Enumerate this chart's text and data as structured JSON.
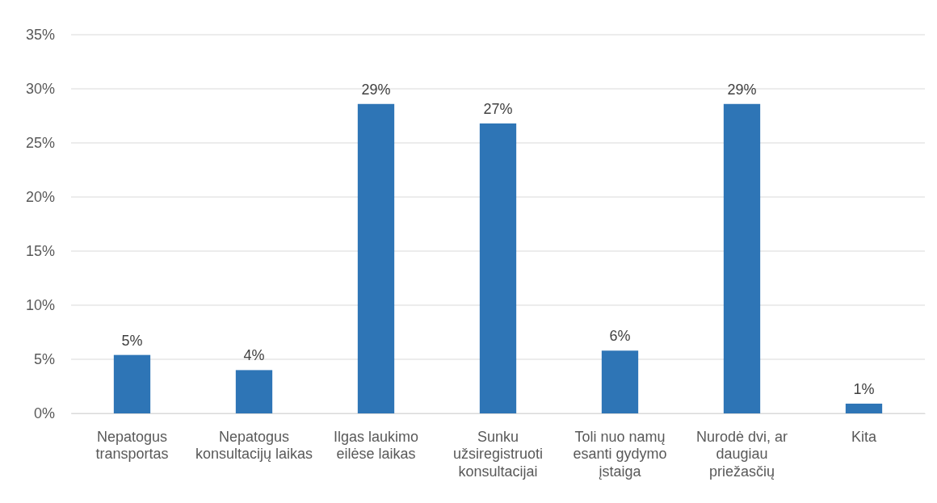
{
  "chart_data": {
    "type": "bar",
    "categories": [
      "Nepatogus transportas",
      "Nepatogus konsultacijų laikas",
      "Ilgas laukimo eilėse laikas",
      "Sunku užsiregistruoti konsultacijai",
      "Toli nuo namų esanti gydymo įstaiga",
      "Nurodė dvi, ar daugiau priežasčių",
      "Kita"
    ],
    "values": [
      5.4,
      4.0,
      28.6,
      26.8,
      5.8,
      28.6,
      0.9
    ],
    "value_labels": [
      "5%",
      "4%",
      "29%",
      "27%",
      "6%",
      "29%",
      "1%"
    ],
    "color": "#2e75b6",
    "ylim": [
      0,
      35
    ],
    "yticks": [
      {
        "value": 0,
        "label": "0%"
      },
      {
        "value": 5,
        "label": "5%"
      },
      {
        "value": 10,
        "label": "10%"
      },
      {
        "value": 15,
        "label": "15%"
      },
      {
        "value": 20,
        "label": "20%"
      },
      {
        "value": 25,
        "label": "25%"
      },
      {
        "value": 30,
        "label": "30%"
      },
      {
        "value": 35,
        "label": "35%"
      }
    ],
    "grid": "y"
  }
}
